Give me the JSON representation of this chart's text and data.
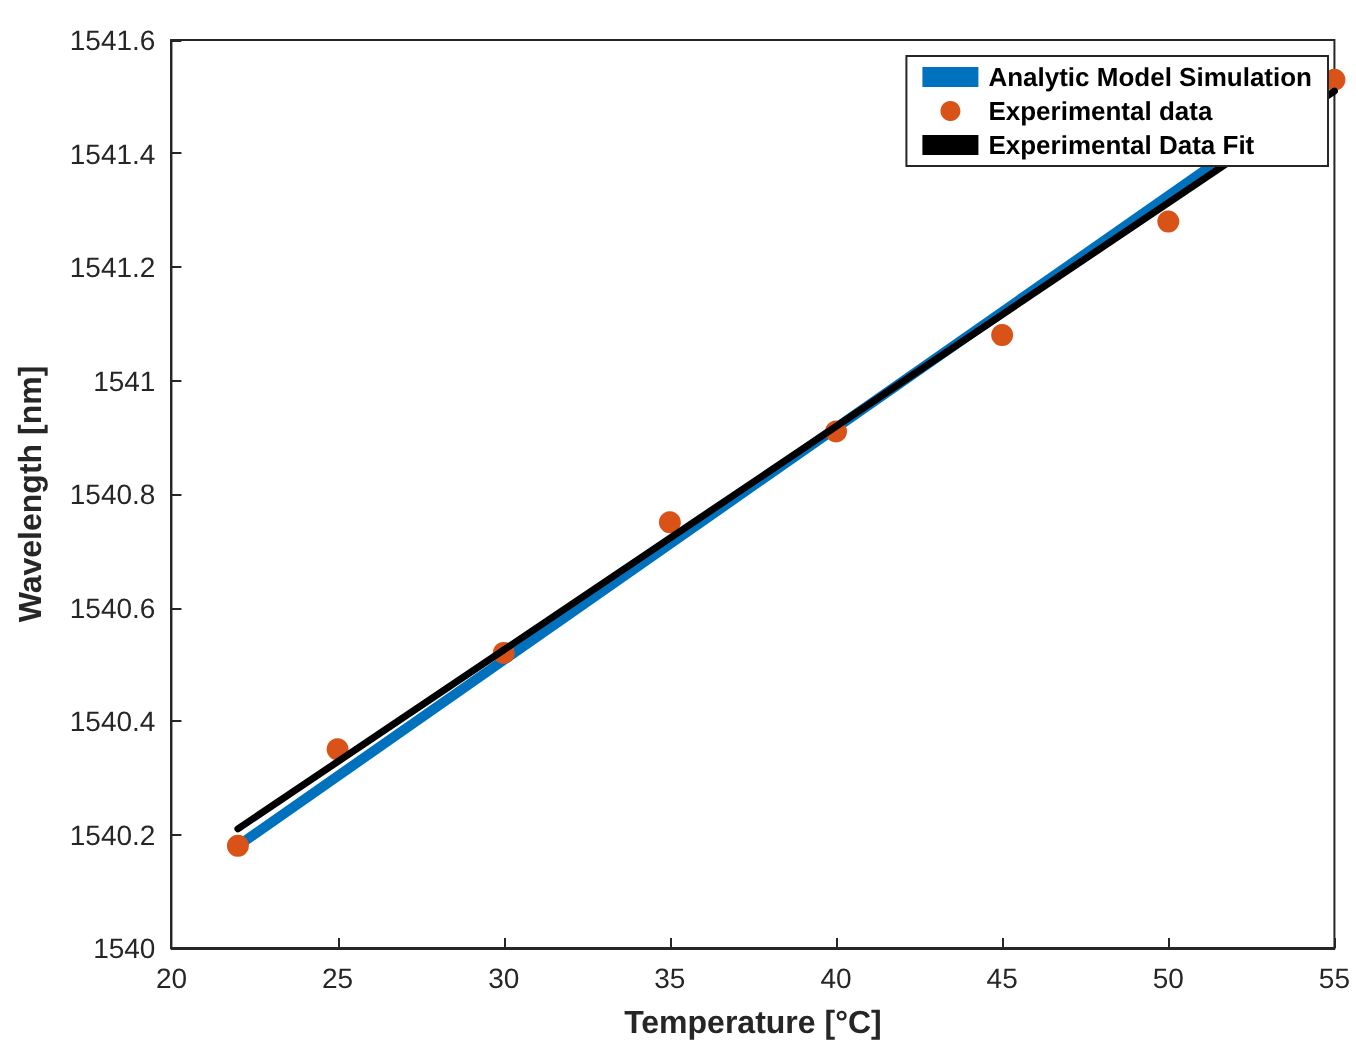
{
  "chart_data": {
    "type": "line",
    "xlabel": "Temperature [°C]",
    "ylabel": "Wavelength [nm]",
    "xlim": [
      20,
      55
    ],
    "xticks": [
      20,
      25,
      30,
      35,
      40,
      45,
      50,
      55
    ],
    "ylim": [
      1540,
      1541.6
    ],
    "yticks": [
      1540,
      1540.2,
      1540.4,
      1540.6,
      1540.8,
      1541,
      1541.2,
      1541.4,
      1541.6
    ],
    "grid": false,
    "legend": "top right",
    "series": [
      {
        "name": "Analytic Model Simulation",
        "color": "#0072bd",
        "x": [
          22,
          55
        ],
        "values": [
          1540.18,
          1541.53
        ]
      },
      {
        "name": "Experimental data",
        "type": "scatter",
        "marker": "circle",
        "color": "#d95319",
        "x": [
          22,
          25,
          30,
          35,
          40,
          45,
          50,
          55
        ],
        "values": [
          1540.18,
          1540.35,
          1540.52,
          1540.75,
          1540.91,
          1541.08,
          1541.28,
          1541.53
        ]
      },
      {
        "name": "Experimental Data Fit",
        "color": "#000000",
        "x": [
          22,
          55
        ],
        "values": [
          1540.21,
          1541.51
        ]
      }
    ]
  }
}
